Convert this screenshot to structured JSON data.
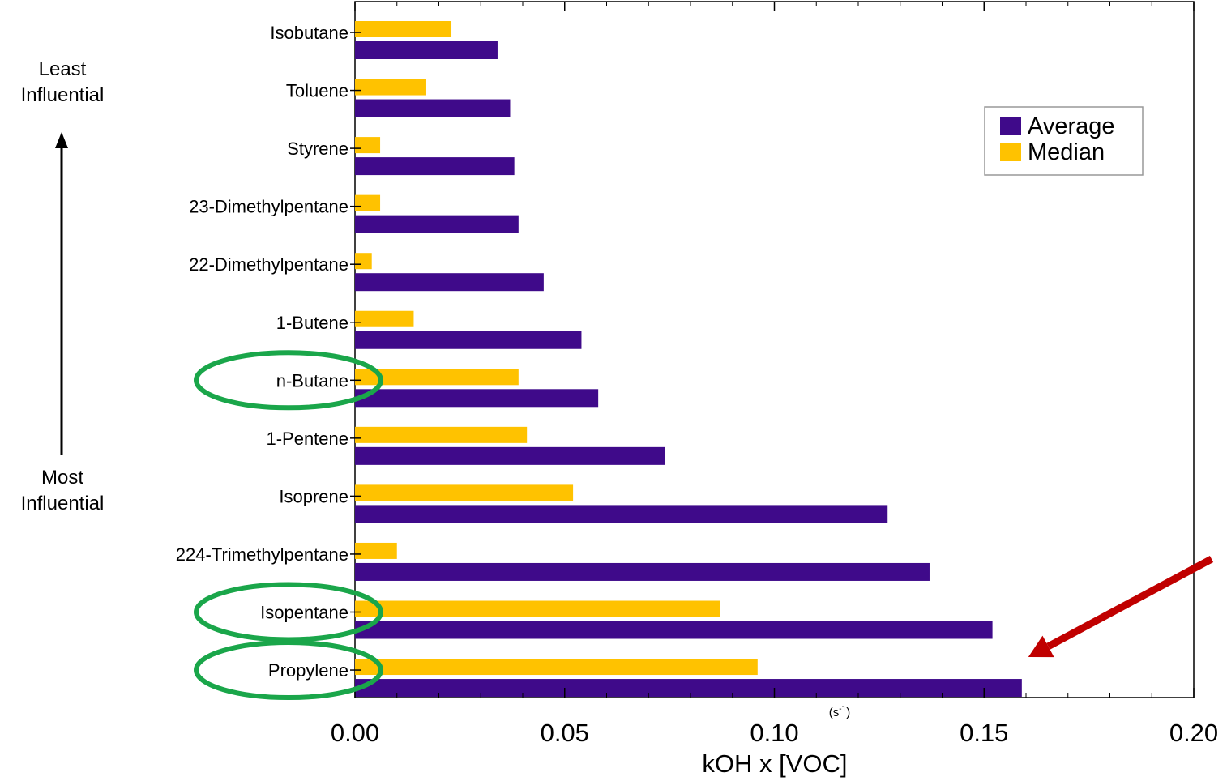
{
  "annotations": {
    "least": [
      "Least",
      "Influential"
    ],
    "most": [
      "Most",
      "Influential"
    ],
    "unit": "(s-1)",
    "unit_base": "(s",
    "unit_sup": "-1",
    "unit_close": ")"
  },
  "colors": {
    "average": "#3f0a8a",
    "median": "#ffc200",
    "highlight": "#1aa64a",
    "arrow": "#c00000"
  },
  "highlighted_categories": [
    "n-Butane",
    "Isopentane",
    "Propylene"
  ],
  "arrow_target": "Propylene",
  "chart_data": {
    "type": "bar",
    "orientation": "horizontal",
    "categories": [
      "Isobutane",
      "Toluene",
      "Styrene",
      "23-Dimethylpentane",
      "22-Dimethylpentane",
      "1-Butene",
      "n-Butane",
      "1-Pentene",
      "Isoprene",
      "224-Trimethylpentane",
      "Isopentane",
      "Propylene"
    ],
    "series": [
      {
        "name": "Average",
        "values": [
          0.034,
          0.037,
          0.038,
          0.039,
          0.045,
          0.054,
          0.058,
          0.074,
          0.127,
          0.137,
          0.152,
          0.159
        ]
      },
      {
        "name": "Median",
        "values": [
          0.023,
          0.017,
          0.006,
          0.006,
          0.004,
          0.014,
          0.039,
          0.041,
          0.052,
          0.01,
          0.087,
          0.096
        ]
      }
    ],
    "xlabel": "kOH x [VOC]",
    "ylabel": "",
    "xlim": [
      0,
      0.2
    ],
    "xticks": [
      "0.00",
      "0.05",
      "0.10",
      "0.15",
      "0.20"
    ],
    "legend": [
      "Average",
      "Median"
    ],
    "legend_position": "top-right",
    "grid": false
  }
}
